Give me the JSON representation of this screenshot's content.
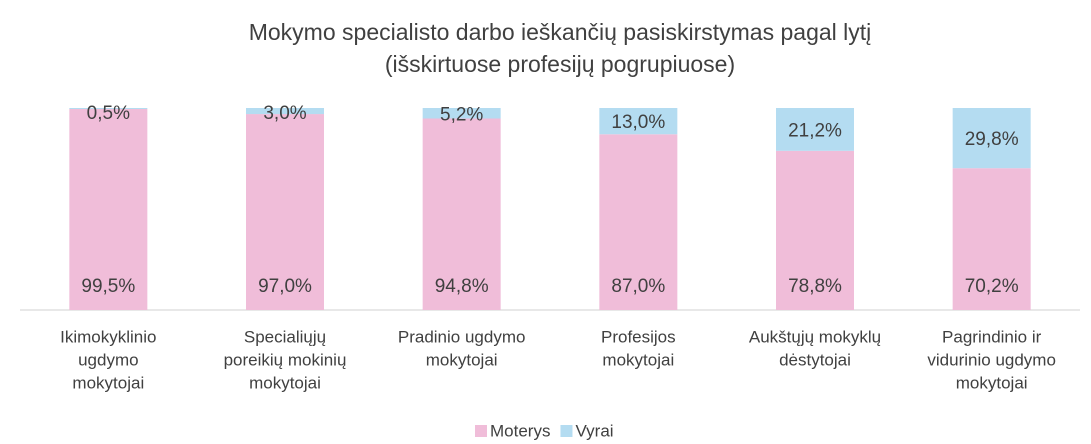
{
  "chart_data": {
    "type": "bar",
    "stacked": true,
    "title": [
      "Mokymo specialisto darbo ieškančių pasiskirstymas pagal lytį",
      "(išskirtuose profesijų pogrupiuose)"
    ],
    "categories": [
      [
        "Ikimokyklinio",
        "ugdymo",
        "mokytojai"
      ],
      [
        "Specialiųjų",
        "poreikių mokinių",
        "mokytojai"
      ],
      [
        "Pradinio ugdymo",
        "mokytojai"
      ],
      [
        "Profesijos",
        "mokytojai"
      ],
      [
        "Aukštųjų mokyklų",
        "dėstytojai"
      ],
      [
        "Pagrindinio ir",
        "vidurinio ugdymo",
        "mokytojai"
      ]
    ],
    "series": [
      {
        "name": "Moterys",
        "color": "#f0bdd9",
        "values": [
          99.5,
          97.0,
          94.8,
          87.0,
          78.8,
          70.2
        ],
        "value_labels": [
          "99,5%",
          "97,0%",
          "94,8%",
          "87,0%",
          "78,8%",
          "70,2%"
        ]
      },
      {
        "name": "Vyrai",
        "color": "#b4dcf1",
        "values": [
          0.5,
          3.0,
          5.2,
          13.0,
          21.2,
          29.8
        ],
        "value_labels": [
          "0,5%",
          "3,0%",
          "5,2%",
          "13,0%",
          "21,2%",
          "29,8%"
        ]
      }
    ],
    "ylim": [
      0,
      100
    ],
    "legend": "bottom"
  }
}
